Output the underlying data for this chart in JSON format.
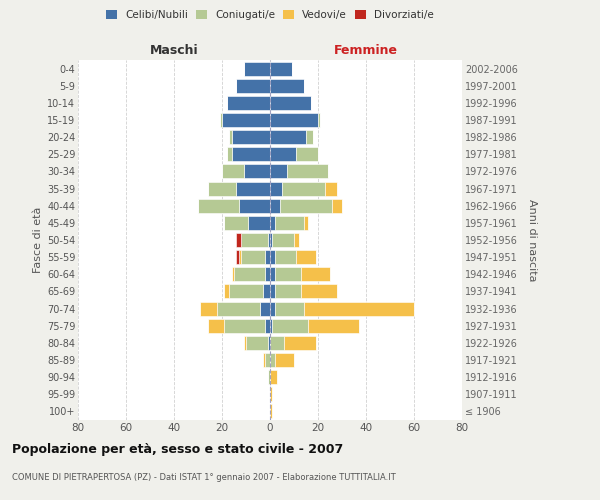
{
  "age_groups": [
    "100+",
    "95-99",
    "90-94",
    "85-89",
    "80-84",
    "75-79",
    "70-74",
    "65-69",
    "60-64",
    "55-59",
    "50-54",
    "45-49",
    "40-44",
    "35-39",
    "30-34",
    "25-29",
    "20-24",
    "15-19",
    "10-14",
    "5-9",
    "0-4"
  ],
  "birth_years": [
    "≤ 1906",
    "1907-1911",
    "1912-1916",
    "1917-1921",
    "1922-1926",
    "1927-1931",
    "1932-1936",
    "1937-1941",
    "1942-1946",
    "1947-1951",
    "1952-1956",
    "1957-1961",
    "1962-1966",
    "1967-1971",
    "1972-1976",
    "1977-1981",
    "1982-1986",
    "1987-1991",
    "1992-1996",
    "1997-2001",
    "2002-2006"
  ],
  "males": {
    "celibi": [
      0,
      0,
      0,
      0,
      1,
      2,
      4,
      3,
      2,
      2,
      1,
      9,
      13,
      14,
      11,
      16,
      16,
      20,
      18,
      14,
      11
    ],
    "coniugati": [
      0,
      0,
      1,
      2,
      9,
      17,
      18,
      14,
      13,
      10,
      11,
      10,
      17,
      12,
      9,
      2,
      1,
      1,
      0,
      0,
      0
    ],
    "vedovi": [
      0,
      0,
      0,
      1,
      1,
      7,
      7,
      2,
      1,
      1,
      0,
      0,
      0,
      0,
      0,
      0,
      0,
      0,
      0,
      0,
      0
    ],
    "divorziati": [
      0,
      0,
      0,
      0,
      0,
      0,
      0,
      0,
      0,
      1,
      2,
      0,
      0,
      0,
      0,
      0,
      0,
      0,
      0,
      0,
      0
    ]
  },
  "females": {
    "nubili": [
      0,
      0,
      0,
      0,
      0,
      1,
      2,
      2,
      2,
      2,
      1,
      2,
      4,
      5,
      7,
      11,
      15,
      20,
      17,
      14,
      9
    ],
    "coniugate": [
      0,
      0,
      0,
      2,
      6,
      15,
      12,
      11,
      11,
      9,
      9,
      12,
      22,
      18,
      17,
      9,
      3,
      1,
      0,
      0,
      0
    ],
    "vedove": [
      1,
      1,
      3,
      8,
      13,
      21,
      46,
      15,
      12,
      8,
      2,
      2,
      4,
      5,
      0,
      0,
      0,
      0,
      0,
      0,
      0
    ],
    "divorziate": [
      0,
      0,
      0,
      0,
      0,
      0,
      0,
      0,
      0,
      0,
      0,
      0,
      0,
      0,
      0,
      0,
      0,
      0,
      0,
      0,
      0
    ]
  },
  "colors": {
    "celibi": "#4472a8",
    "coniugati": "#b5c994",
    "vedovi": "#f5c04a",
    "divorziati": "#c0271e"
  },
  "xlim": 80,
  "title": "Popolazione per età, sesso e stato civile - 2007",
  "subtitle": "COMUNE DI PIETRAPERTOSA (PZ) - Dati ISTAT 1° gennaio 2007 - Elaborazione TUTTITALIA.IT",
  "ylabel_left": "Fasce di età",
  "ylabel_right": "Anni di nascita",
  "xlabel_left": "Maschi",
  "xlabel_right": "Femmine",
  "background_color": "#f0f0eb",
  "bar_background": "#ffffff",
  "legend_labels": [
    "Celibi/Nubili",
    "Coniugati/e",
    "Vedovi/e",
    "Divorziati/e"
  ]
}
